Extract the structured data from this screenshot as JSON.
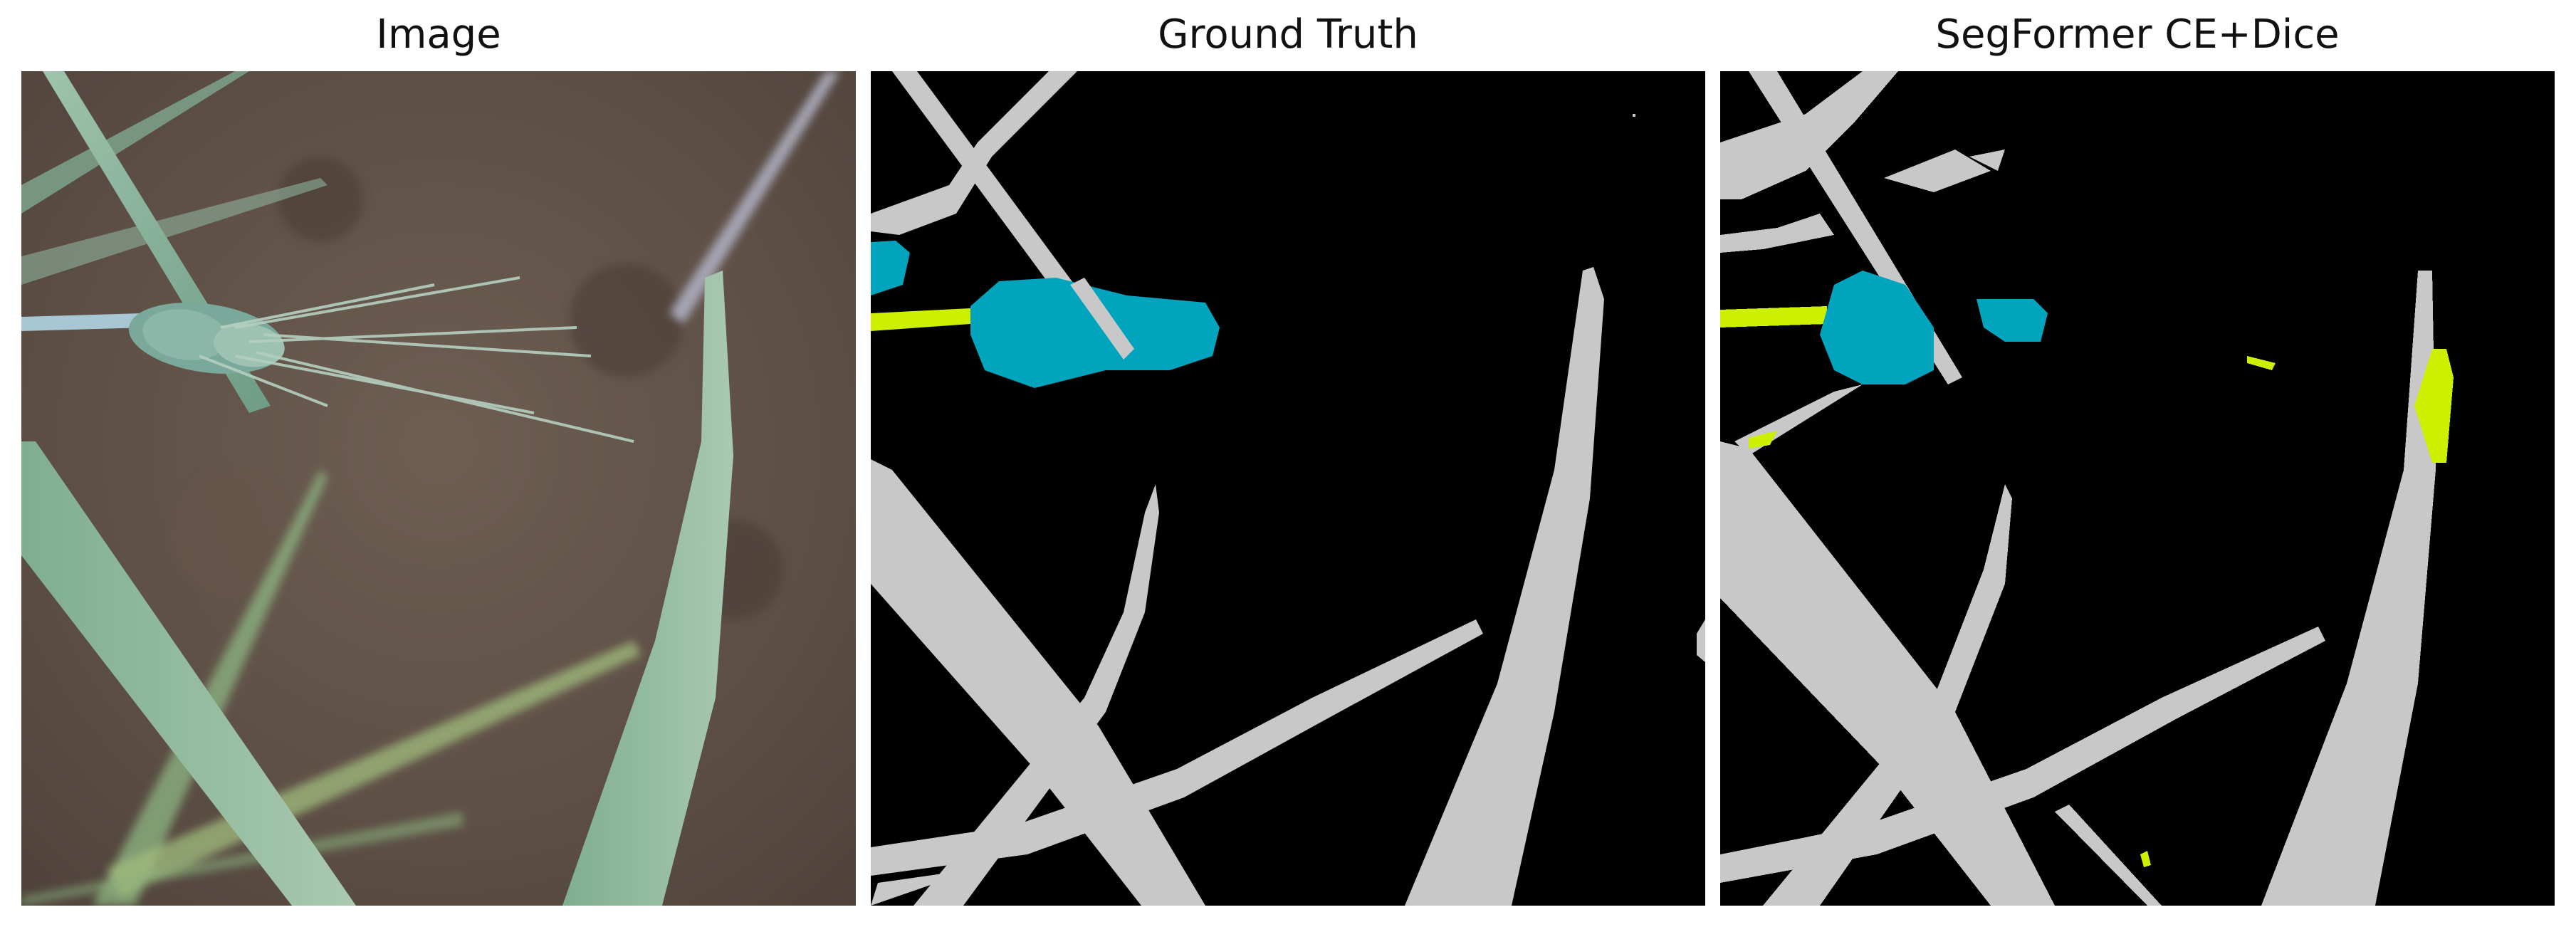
{
  "panels": [
    {
      "title": "Image"
    },
    {
      "title": "Ground Truth"
    },
    {
      "title": "SegFormer CE+Dice"
    }
  ],
  "legend_colors": {
    "background": "#000000",
    "leaf": "#c8c8c8",
    "spike": "#00a4bc",
    "awn": "#ccf000"
  }
}
